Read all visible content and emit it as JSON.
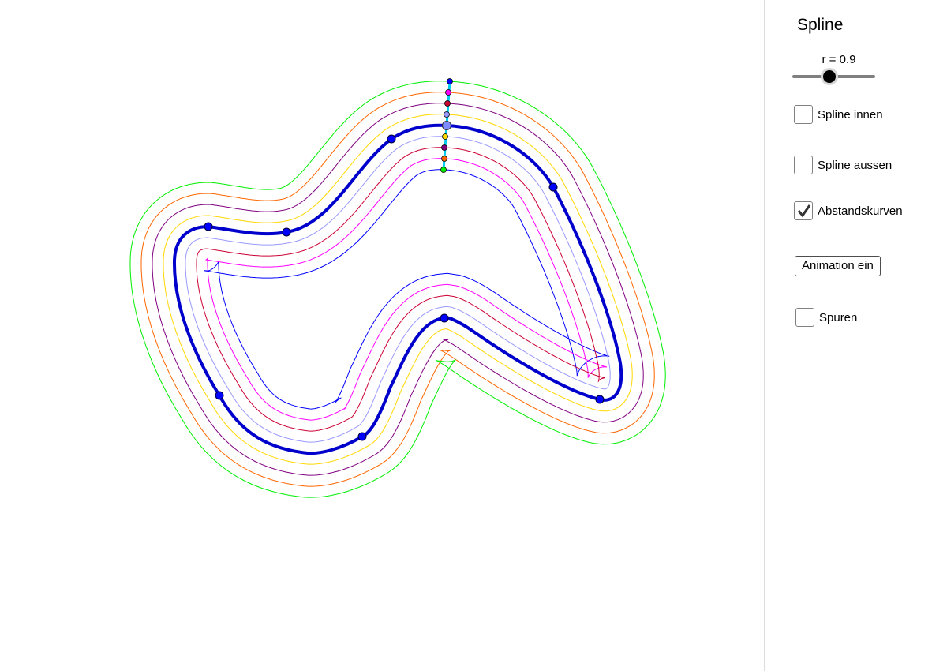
{
  "panel": {
    "title": "Spline",
    "slider": {
      "label": "r = 0.9",
      "value": 0.9,
      "fraction": 0.45
    },
    "checkboxes": [
      {
        "label": "Spline innen",
        "checked": false
      },
      {
        "label": "Spline aussen",
        "checked": false
      },
      {
        "label": "Abstandskurven",
        "checked": true
      }
    ],
    "button_label": "Animation ein",
    "trace_checkbox": {
      "label": "Spuren",
      "checked": false
    }
  },
  "colors": {
    "main_curve": "#0000cc",
    "offsets": [
      "#0000ff",
      "#ff00ff",
      "#cc0033",
      "#9999ff",
      "#ffd700",
      "#800080",
      "#ff6600",
      "#00ee00"
    ],
    "control_points": "#0000ff",
    "segment": "#00ccee"
  }
}
